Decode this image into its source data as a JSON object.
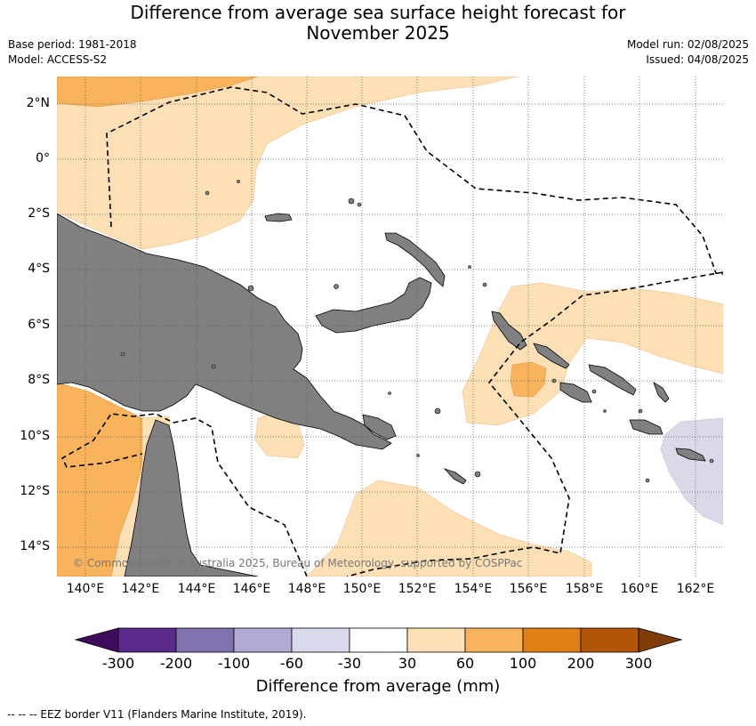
{
  "title_line1": "Difference from average sea surface height forecast for",
  "title_line2": "November 2025",
  "meta": {
    "base_period": "Base period: 1981-2018",
    "model": "Model: ACCESS-S2",
    "model_run": "Model run: 02/08/2025",
    "issued": "Issued: 04/08/2025"
  },
  "map": {
    "lat_labels": [
      "2°N",
      "0°",
      "2°S",
      "4°S",
      "6°S",
      "8°S",
      "10°S",
      "12°S",
      "14°S"
    ],
    "lon_labels": [
      "140°E",
      "142°E",
      "144°E",
      "146°E",
      "148°E",
      "150°E",
      "152°E",
      "154°E",
      "156°E",
      "158°E",
      "160°E",
      "162°E"
    ],
    "copyright": "© Commonwealth of Australia 2025, Bureau of Meteorology, supported by COSPPac",
    "colors": {
      "land": "#808080",
      "anomaly_30_60": "#fde0b6",
      "anomaly_60_100": "#f9b35c",
      "anomaly_neg_30_60": "#d9d9ea"
    }
  },
  "colorbar": {
    "ticks": [
      "-300",
      "-200",
      "-100",
      "-60",
      "-30",
      "30",
      "60",
      "100",
      "200",
      "300"
    ],
    "colors": [
      "#3f0b5c",
      "#5a2a8a",
      "#8072ae",
      "#b2aad4",
      "#d9daec",
      "#ffffff",
      "#fde0b6",
      "#f9b35c",
      "#df7f14",
      "#b25506",
      "#7f3b08"
    ],
    "title": "Difference from average (mm)"
  },
  "footer": "--  --  -- EEZ border V11 (Flanders Marine Institute, 2019)."
}
